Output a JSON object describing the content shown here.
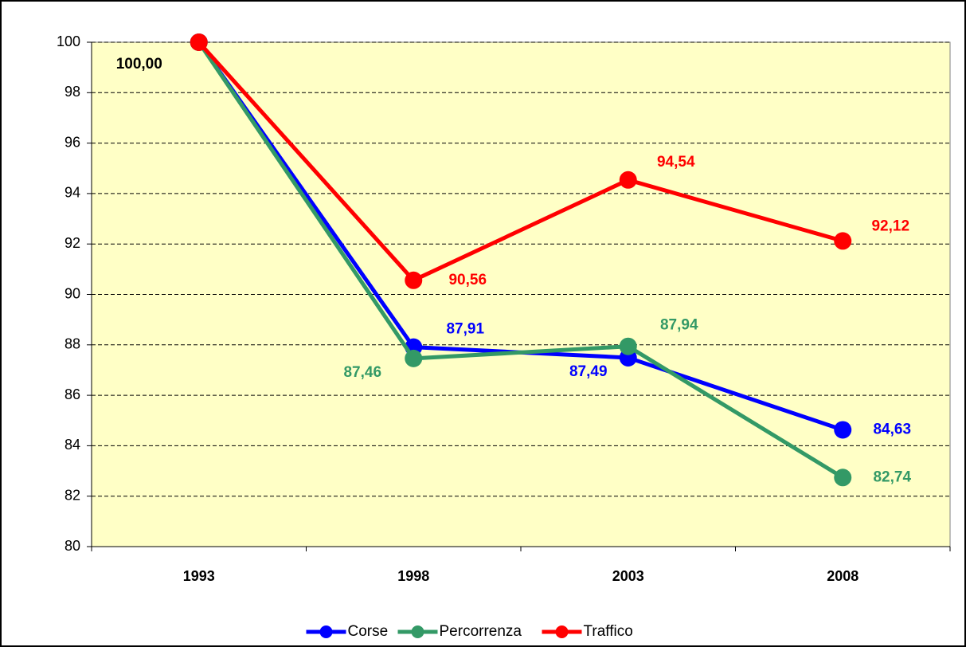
{
  "chart_data": {
    "type": "line",
    "categories": [
      "1993",
      "1998",
      "2003",
      "2008"
    ],
    "series": [
      {
        "name": "Corse",
        "color": "#0000ff",
        "values": [
          100,
          87.91,
          87.49,
          84.63
        ],
        "value_labels": [
          "100,00",
          "87,91",
          "87,49",
          "84,63"
        ]
      },
      {
        "name": "Percorrenza",
        "color": "#339966",
        "values": [
          100,
          87.46,
          87.94,
          82.74
        ],
        "value_labels": [
          null,
          "87,46",
          "87,94",
          "82,74"
        ]
      },
      {
        "name": "Traffico",
        "color": "#ff0000",
        "values": [
          100,
          90.56,
          94.54,
          92.12
        ],
        "value_labels": [
          null,
          "90,56",
          "94,54",
          "92,12"
        ]
      }
    ],
    "ylim": [
      80,
      100
    ],
    "yticks": [
      80,
      82,
      84,
      86,
      88,
      90,
      92,
      94,
      96,
      98,
      100
    ],
    "grid": true,
    "legend": "bottom",
    "plot_background": "#ffffc6"
  }
}
